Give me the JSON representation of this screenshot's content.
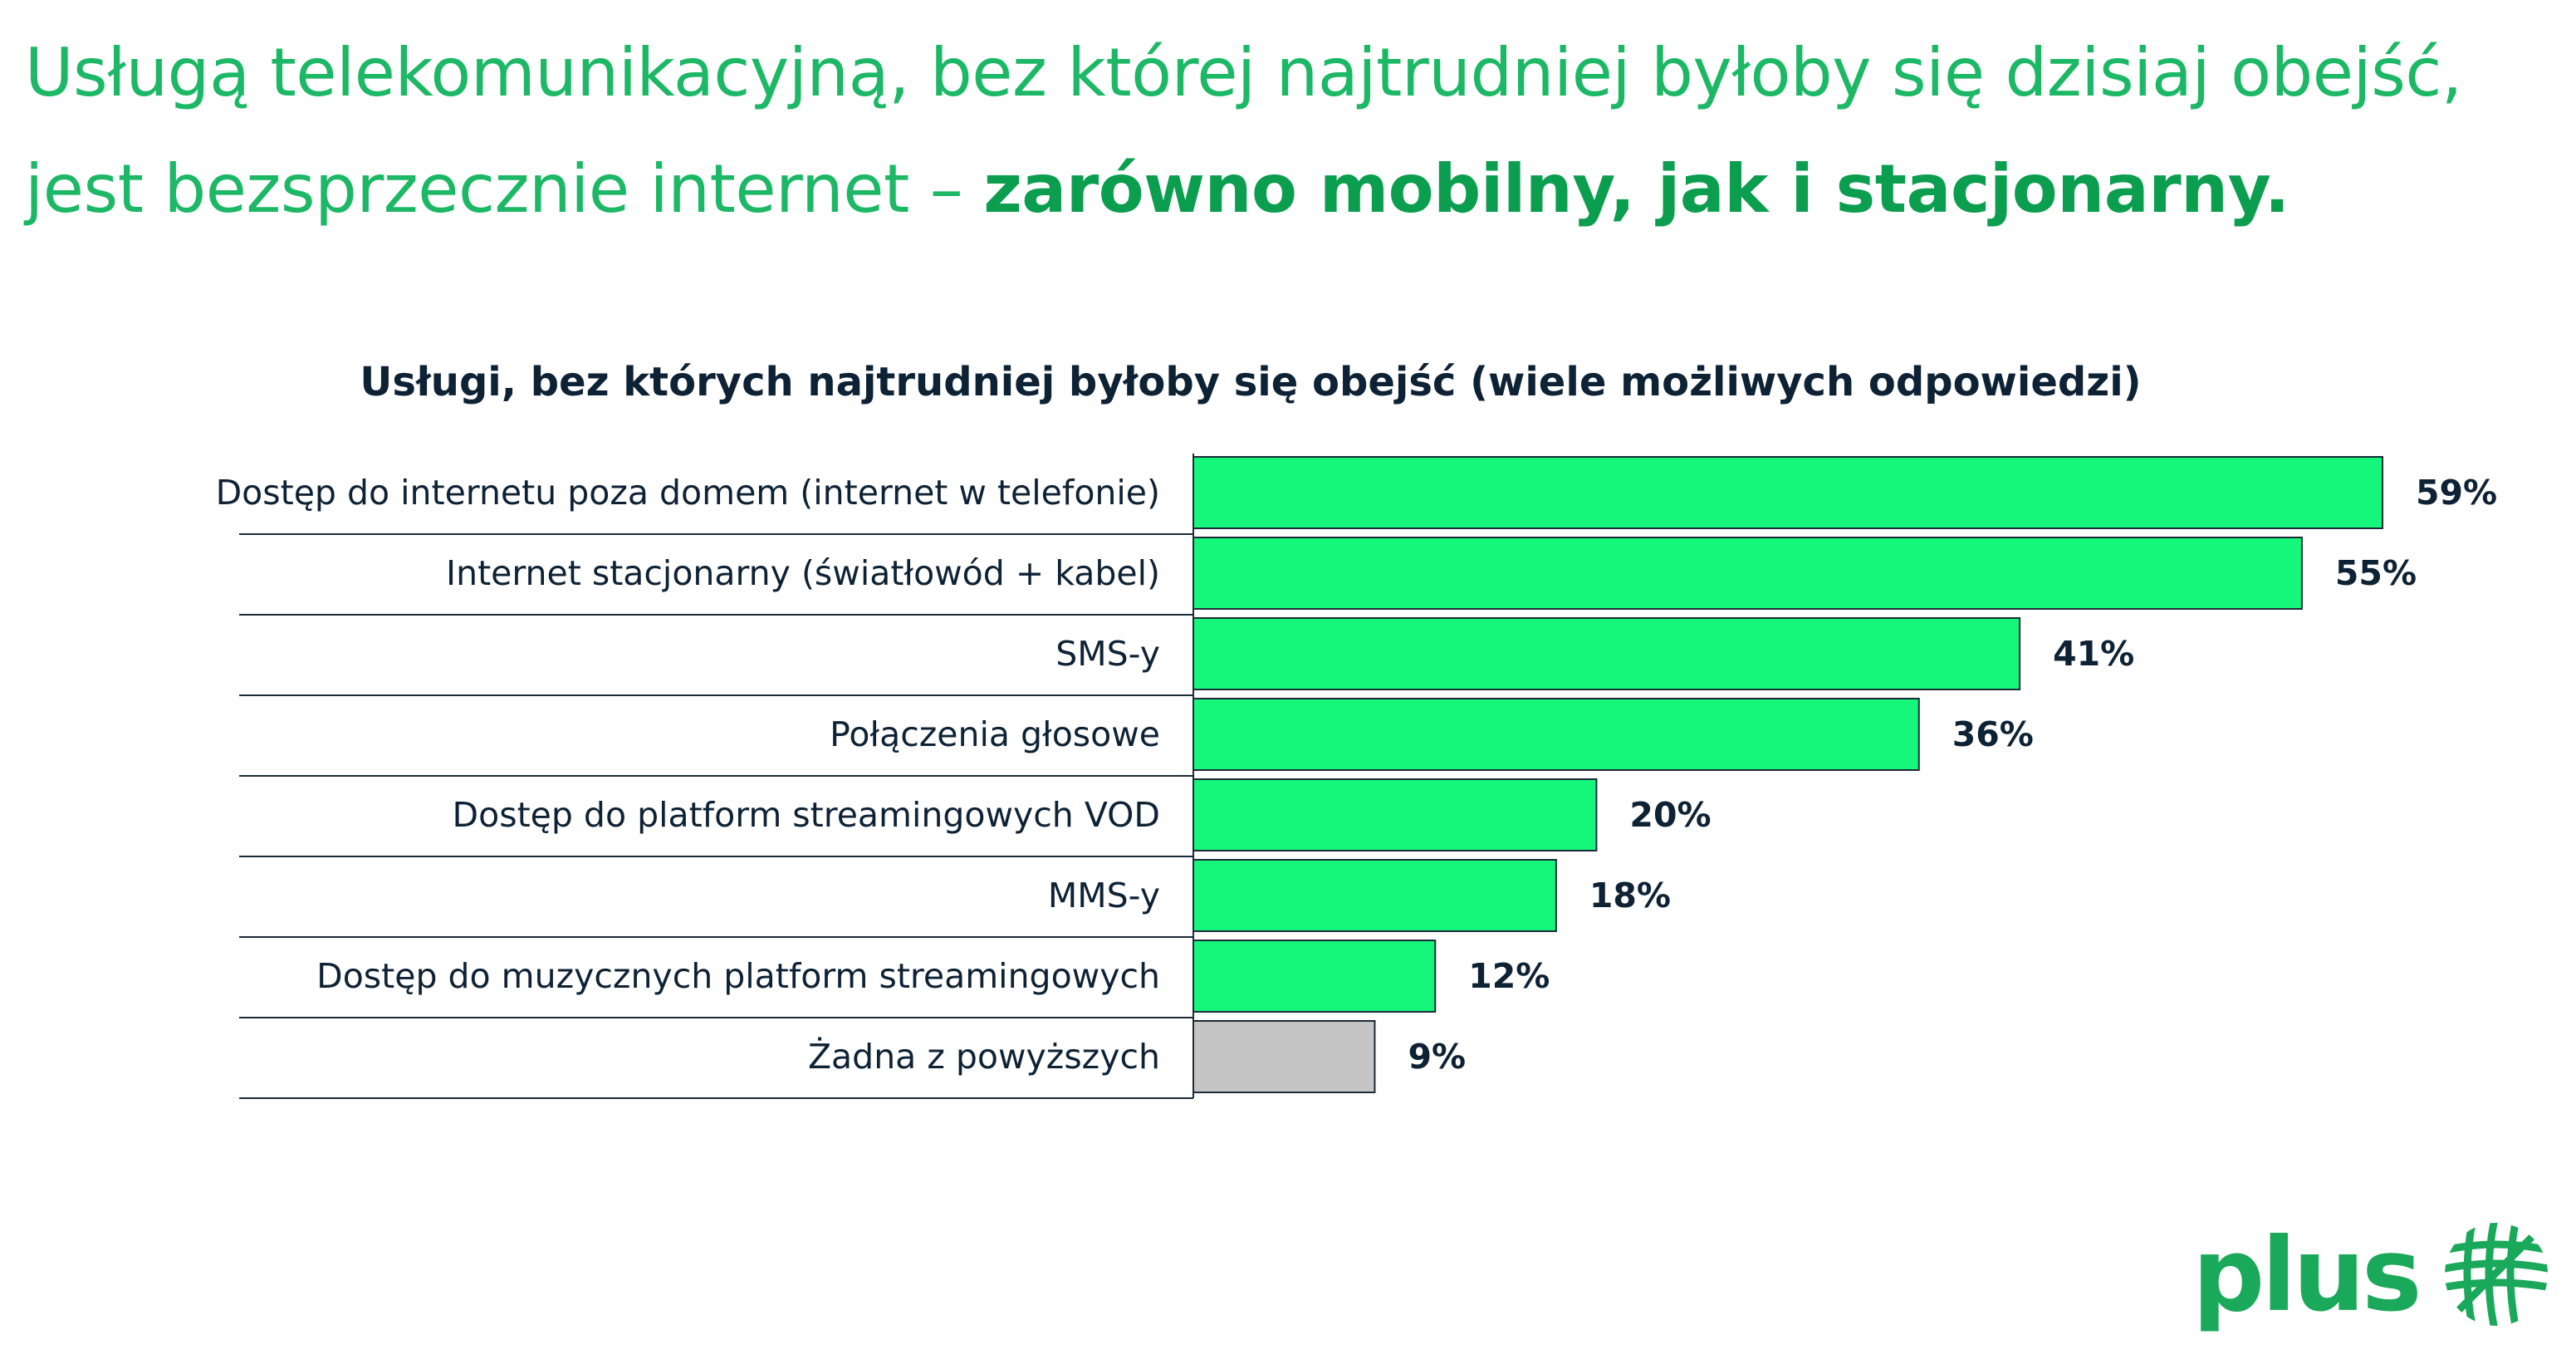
{
  "headline": {
    "line1": "Usługą telekomunikacyjną, bez której najtrudniej byłoby się dzisiaj obejść,",
    "line2_regular": "jest bezsprzecznie internet – ",
    "line2_bold": "zarówno mobilny, jak i stacjonarny."
  },
  "colors": {
    "accent_bar": "#14f77a",
    "none_bar": "#c5c5c5",
    "headline": "#1cb866",
    "logo": "#1aa85a",
    "text": "#0e2235"
  },
  "chart_data": {
    "type": "bar",
    "orientation": "horizontal",
    "title": "Usługi, bez których najtrudniej byłoby się obejść (wiele możliwych odpowiedzi)",
    "categories": [
      "Dostęp do internetu poza domem (internet w telefonie)",
      "Internet stacjonarny (światłowód + kabel)",
      "SMS-y",
      "Połączenia głosowe",
      "Dostęp do platform streamingowych VOD",
      "MMS-y",
      "Dostęp do muzycznych platform streamingowych",
      "Żadna z powyższych"
    ],
    "values": [
      59,
      55,
      41,
      36,
      20,
      18,
      12,
      9
    ],
    "value_labels": [
      "59%",
      "55%",
      "41%",
      "36%",
      "20%",
      "18%",
      "12%",
      "9%"
    ],
    "bar_colors": [
      "#14f77a",
      "#14f77a",
      "#14f77a",
      "#14f77a",
      "#14f77a",
      "#14f77a",
      "#14f77a",
      "#c5c5c5"
    ],
    "xlim": [
      0,
      59
    ],
    "grid": false
  },
  "logo": {
    "text": "plus",
    "icon": "plus-logo-mark-icon"
  }
}
